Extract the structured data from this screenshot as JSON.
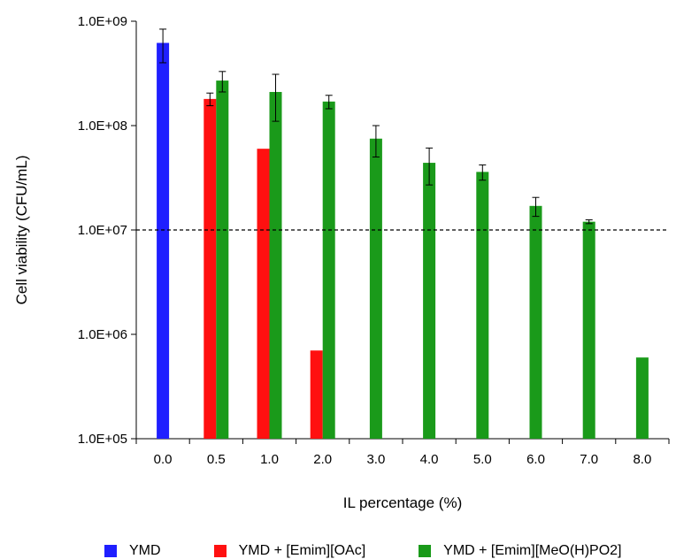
{
  "chart_data": {
    "type": "bar",
    "xlabel": "IL percentage (%)",
    "ylabel": "Cell viability (CFU/mL)",
    "y_scale": "log",
    "ylim": [
      100000,
      1000000000
    ],
    "y_ticks": [
      {
        "value": 100000,
        "label": "1.0E+05"
      },
      {
        "value": 1000000,
        "label": "1.0E+06"
      },
      {
        "value": 10000000,
        "label": "1.0E+07"
      },
      {
        "value": 100000000,
        "label": "1.0E+08"
      },
      {
        "value": 1000000000,
        "label": "1.0E+09"
      }
    ],
    "categories": [
      "0.0",
      "0.5",
      "1.0",
      "2.0",
      "3.0",
      "4.0",
      "5.0",
      "6.0",
      "7.0",
      "8.0"
    ],
    "series": [
      {
        "name": "YMD",
        "color": "#1f1fff",
        "values": [
          620000000,
          null,
          null,
          null,
          null,
          null,
          null,
          null,
          null,
          null
        ],
        "errors": [
          220000000,
          null,
          null,
          null,
          null,
          null,
          null,
          null,
          null,
          null
        ]
      },
      {
        "name": "YMD + [Emim][OAc]",
        "color": "#ff1010",
        "values": [
          null,
          180000000,
          60000000,
          700000,
          null,
          null,
          null,
          null,
          null,
          null
        ],
        "errors": [
          null,
          25000000,
          0,
          0,
          null,
          null,
          null,
          null,
          null,
          null
        ]
      },
      {
        "name": "YMD + [Emim][MeO(H)PO2]",
        "color": "#1a9a1a",
        "values": [
          null,
          270000000,
          210000000,
          170000000,
          75000000,
          44000000,
          36000000,
          17000000,
          12000000,
          600000
        ],
        "errors": [
          null,
          60000000,
          100000000,
          25000000,
          25000000,
          17000000,
          6000000,
          3500000,
          500000,
          0
        ]
      }
    ],
    "reference_line": {
      "value": 10000000,
      "style": "dashed"
    },
    "legend_position": "bottom",
    "grid": false
  }
}
